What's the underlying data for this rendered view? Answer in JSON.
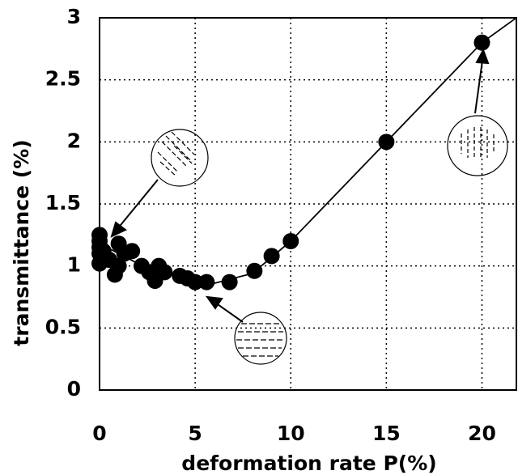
{
  "chart_data": {
    "type": "scatter",
    "xlabel": "deformation rate P(%)",
    "ylabel": "transmittance (%)",
    "xlim": [
      0,
      21.8
    ],
    "ylim": [
      0,
      3
    ],
    "xticks": [
      0,
      5,
      10,
      15,
      20
    ],
    "yticks": [
      0,
      0.5,
      1,
      1.5,
      2,
      2.5,
      3
    ],
    "grid": true,
    "series": [
      {
        "mode": "markers",
        "color": "#000000",
        "x": [
          0,
          0,
          0,
          0,
          0,
          0.2,
          0.5,
          0.8,
          1,
          1,
          1.3,
          1.7,
          2.2,
          2.6,
          2.9,
          3.1,
          3.4,
          4.2,
          4.6,
          5,
          5.6,
          6.8,
          8.1,
          9,
          10,
          15,
          20
        ],
        "values": [
          1.02,
          1.1,
          1.15,
          1.2,
          1.25,
          1.12,
          1.05,
          0.93,
          1.0,
          1.18,
          1.1,
          1.12,
          1.0,
          0.95,
          0.88,
          1.0,
          0.95,
          0.92,
          0.9,
          0.87,
          0.87,
          0.87,
          0.96,
          1.08,
          1.2,
          2.0,
          2.8
        ]
      },
      {
        "mode": "lines",
        "color": "#000000",
        "x": [
          0,
          2,
          4,
          6,
          8,
          10,
          15,
          20,
          21.8
        ],
        "values": [
          1.18,
          1.02,
          0.92,
          0.86,
          0.94,
          1.2,
          2.0,
          2.8,
          3.0
        ]
      }
    ]
  }
}
